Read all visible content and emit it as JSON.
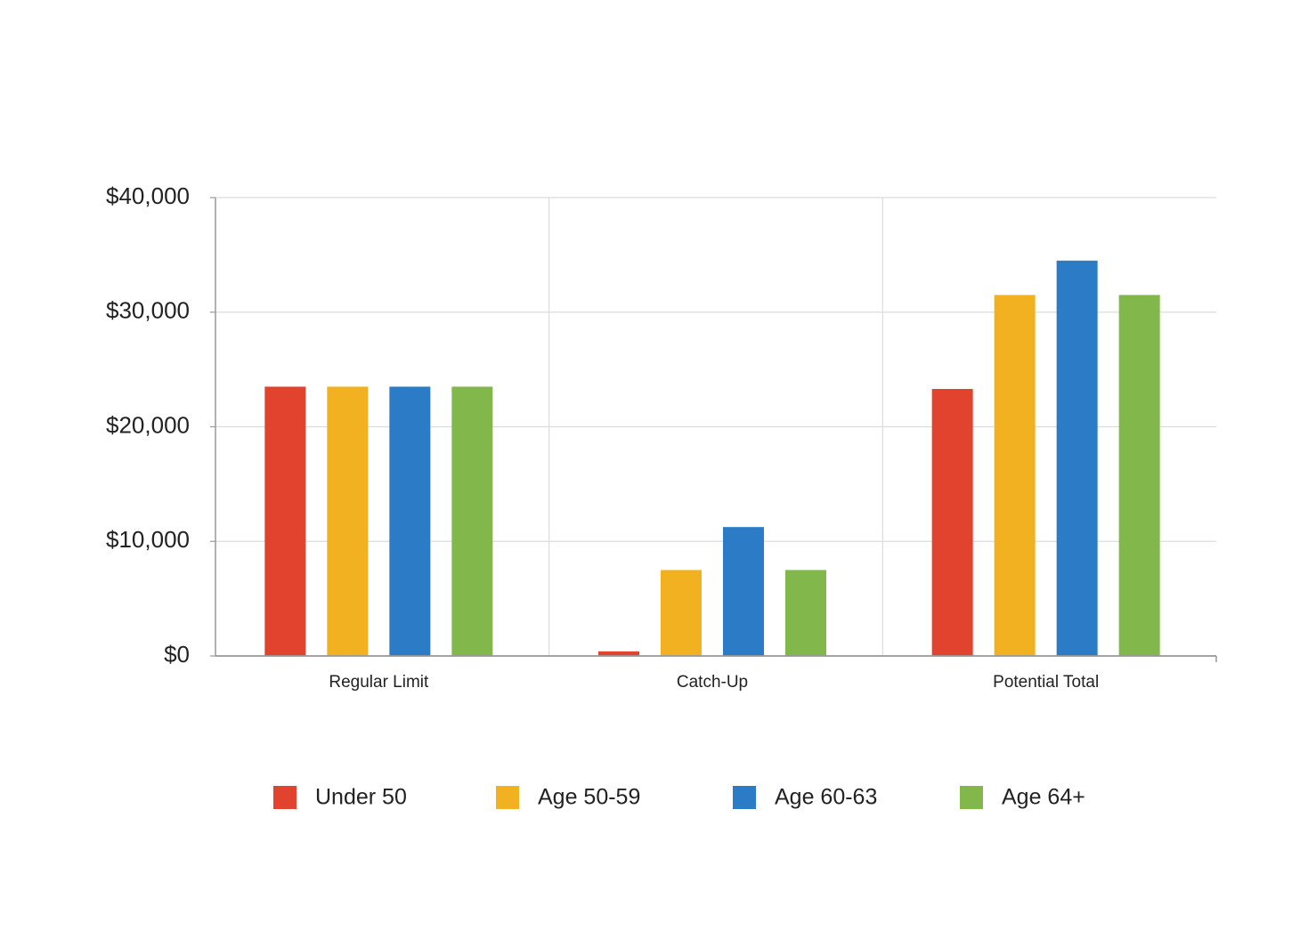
{
  "chart_data": {
    "type": "bar",
    "categories": [
      "Regular Limit",
      "Catch-Up",
      "Potential Total"
    ],
    "series": [
      {
        "name": "Under 50",
        "color": "#e2432e",
        "values": [
          23500,
          400,
          23300
        ]
      },
      {
        "name": "Age 50-59",
        "color": "#f2b121",
        "values": [
          23500,
          7500,
          31500
        ]
      },
      {
        "name": "Age 60-63",
        "color": "#2c7bc7",
        "values": [
          23500,
          11250,
          34500
        ]
      },
      {
        "name": "Age 64+",
        "color": "#82b74b",
        "values": [
          23500,
          7500,
          31500
        ]
      }
    ],
    "ylim": [
      0,
      40000
    ],
    "yticks": [
      {
        "value": 0,
        "label": "$0"
      },
      {
        "value": 10000,
        "label": "$10,000"
      },
      {
        "value": 20000,
        "label": "$20,000"
      },
      {
        "value": 30000,
        "label": "$30,000"
      },
      {
        "value": 40000,
        "label": "$40,000"
      }
    ],
    "grid": true,
    "legend": "bottom"
  }
}
